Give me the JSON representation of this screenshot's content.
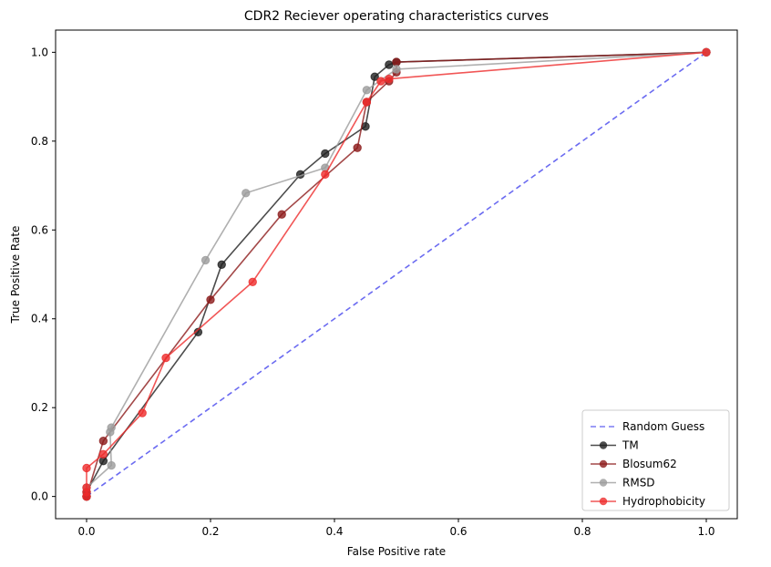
{
  "chart_data": {
    "type": "line",
    "title": "CDR2 Reciever operating characteristics curves",
    "xlabel": "False Positive rate",
    "ylabel": "True Positive Rate",
    "xlim": [
      -0.05,
      1.05
    ],
    "ylim": [
      -0.05,
      1.05
    ],
    "xticks": [
      "0.0",
      "0.2",
      "0.4",
      "0.6",
      "0.8",
      "1.0"
    ],
    "yticks": [
      "0.0",
      "0.2",
      "0.4",
      "0.6",
      "0.8",
      "1.0"
    ],
    "grid": false,
    "legend_position": "lower-right",
    "series": [
      {
        "name": "Random Guess",
        "color": "#5b5bf0",
        "style": "dashed",
        "markers": false,
        "points": [
          [
            0,
            0
          ],
          [
            1,
            1
          ]
        ]
      },
      {
        "name": "TM",
        "color": "#1f1f1f",
        "style": "solid",
        "markers": true,
        "points": [
          [
            0,
            0
          ],
          [
            0,
            0.01
          ],
          [
            0.027,
            0.08
          ],
          [
            0.18,
            0.37
          ],
          [
            0.218,
            0.522
          ],
          [
            0.345,
            0.725
          ],
          [
            0.385,
            0.772
          ],
          [
            0.45,
            0.833
          ],
          [
            0.465,
            0.945
          ],
          [
            0.488,
            0.972
          ],
          [
            0.5,
            0.978
          ],
          [
            1,
            1
          ]
        ]
      },
      {
        "name": "Blosum62",
        "color": "#8c1a1a",
        "style": "solid",
        "markers": true,
        "points": [
          [
            0,
            0
          ],
          [
            0.027,
            0.125
          ],
          [
            0.2,
            0.443
          ],
          [
            0.315,
            0.635
          ],
          [
            0.437,
            0.785
          ],
          [
            0.452,
            0.888
          ],
          [
            0.488,
            0.935
          ],
          [
            0.5,
            0.955
          ],
          [
            0.5,
            0.978
          ],
          [
            1,
            1
          ]
        ]
      },
      {
        "name": "RMSD",
        "color": "#9b9b9b",
        "style": "solid",
        "markers": true,
        "points": [
          [
            0,
            0.02
          ],
          [
            0.04,
            0.07
          ],
          [
            0.038,
            0.145
          ],
          [
            0.04,
            0.155
          ],
          [
            0.192,
            0.532
          ],
          [
            0.257,
            0.683
          ],
          [
            0.385,
            0.74
          ],
          [
            0.452,
            0.915
          ],
          [
            0.5,
            0.962
          ],
          [
            1,
            1
          ]
        ]
      },
      {
        "name": "Hydrophobicity",
        "color": "#ee2c2c",
        "style": "solid",
        "markers": true,
        "points": [
          [
            0,
            0
          ],
          [
            0,
            0.01
          ],
          [
            0,
            0.02
          ],
          [
            0,
            0.064
          ],
          [
            0.027,
            0.095
          ],
          [
            0.09,
            0.188
          ],
          [
            0.128,
            0.312
          ],
          [
            0.268,
            0.483
          ],
          [
            0.385,
            0.725
          ],
          [
            0.452,
            0.888
          ],
          [
            0.475,
            0.935
          ],
          [
            0.488,
            0.94
          ],
          [
            1,
            1
          ]
        ]
      }
    ]
  }
}
